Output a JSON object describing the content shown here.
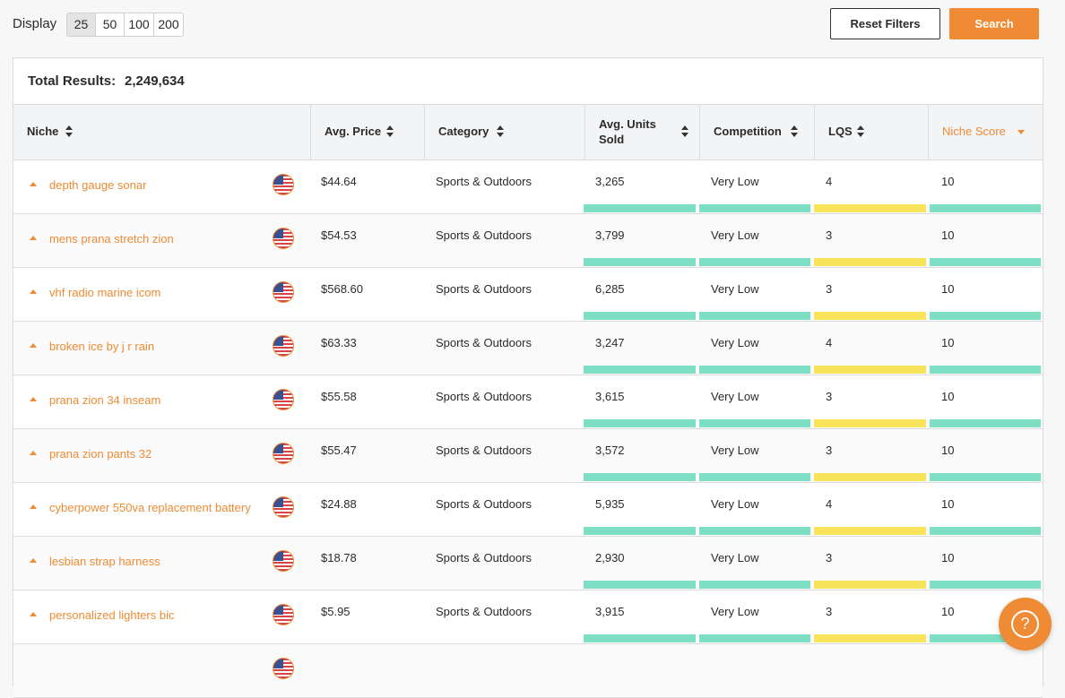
{
  "toolbar": {
    "display_label": "Display",
    "page_sizes": [
      "25",
      "50",
      "100",
      "200"
    ],
    "selected_page_size": "25",
    "reset_label": "Reset Filters",
    "search_label": "Search"
  },
  "results": {
    "total_label": "Total Results:",
    "total_value": "2,249,634"
  },
  "columns": {
    "niche": "Niche",
    "avg_price": "Avg. Price",
    "category": "Category",
    "avg_units": "Avg. Units Sold",
    "competition": "Competition",
    "lqs": "LQS",
    "niche_score": "Niche Score"
  },
  "colors": {
    "accent": "#ee8b34",
    "bar_green": "#7ddfc3",
    "bar_yellow": "#f7e45a"
  },
  "rows": [
    {
      "niche": "depth gauge sonar",
      "price": "$44.64",
      "category": "Sports & Outdoors",
      "units": "3,265",
      "competition": "Very Low",
      "lqs": "4",
      "score": "10"
    },
    {
      "niche": "mens prana stretch zion",
      "price": "$54.53",
      "category": "Sports & Outdoors",
      "units": "3,799",
      "competition": "Very Low",
      "lqs": "3",
      "score": "10"
    },
    {
      "niche": "vhf radio marine icom",
      "price": "$568.60",
      "category": "Sports & Outdoors",
      "units": "6,285",
      "competition": "Very Low",
      "lqs": "3",
      "score": "10"
    },
    {
      "niche": "broken ice by j r rain",
      "price": "$63.33",
      "category": "Sports & Outdoors",
      "units": "3,247",
      "competition": "Very Low",
      "lqs": "4",
      "score": "10"
    },
    {
      "niche": "prana zion 34 inseam",
      "price": "$55.58",
      "category": "Sports & Outdoors",
      "units": "3,615",
      "competition": "Very Low",
      "lqs": "3",
      "score": "10"
    },
    {
      "niche": "prana zion pants 32",
      "price": "$55.47",
      "category": "Sports & Outdoors",
      "units": "3,572",
      "competition": "Very Low",
      "lqs": "3",
      "score": "10"
    },
    {
      "niche": "cyberpower 550va replacement battery",
      "price": "$24.88",
      "category": "Sports & Outdoors",
      "units": "5,935",
      "competition": "Very Low",
      "lqs": "4",
      "score": "10"
    },
    {
      "niche": "lesbian strap harness",
      "price": "$18.78",
      "category": "Sports & Outdoors",
      "units": "2,930",
      "competition": "Very Low",
      "lqs": "3",
      "score": "10"
    },
    {
      "niche": "personalized lighters bic",
      "price": "$5.95",
      "category": "Sports & Outdoors",
      "units": "3,915",
      "competition": "Very Low",
      "lqs": "3",
      "score": "10"
    }
  ],
  "help": {
    "icon": "question-icon",
    "glyph": "?"
  }
}
